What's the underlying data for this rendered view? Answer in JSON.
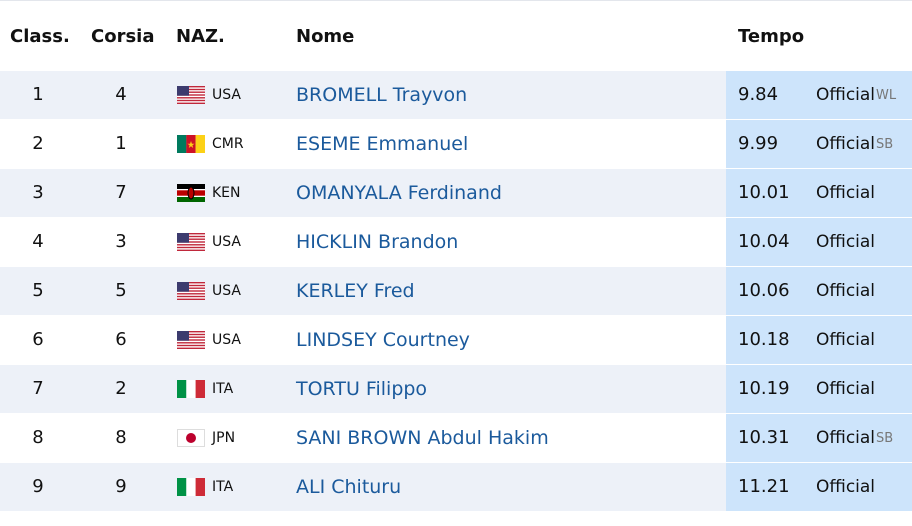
{
  "header": {
    "rank": "Class.",
    "lane": "Corsia",
    "nat": "NAZ.",
    "name": "Nome",
    "time": "Tempo"
  },
  "rows": [
    {
      "rank": "1",
      "lane": "4",
      "nat": "USA",
      "name": "BROMELL Trayvon",
      "time": "9.84",
      "status": "Official",
      "note": "WL"
    },
    {
      "rank": "2",
      "lane": "1",
      "nat": "CMR",
      "name": "ESEME Emmanuel",
      "time": "9.99",
      "status": "Official",
      "note": "SB"
    },
    {
      "rank": "3",
      "lane": "7",
      "nat": "KEN",
      "name": "OMANYALA Ferdinand",
      "time": "10.01",
      "status": "Official"
    },
    {
      "rank": "4",
      "lane": "3",
      "nat": "USA",
      "name": "HICKLIN Brandon",
      "time": "10.04",
      "status": "Official"
    },
    {
      "rank": "5",
      "lane": "5",
      "nat": "USA",
      "name": "KERLEY Fred",
      "time": "10.06",
      "status": "Official"
    },
    {
      "rank": "6",
      "lane": "6",
      "nat": "USA",
      "name": "LINDSEY Courtney",
      "time": "10.18",
      "status": "Official"
    },
    {
      "rank": "7",
      "lane": "2",
      "nat": "ITA",
      "name": "TORTU Filippo",
      "time": "10.19",
      "status": "Official"
    },
    {
      "rank": "8",
      "lane": "8",
      "nat": "JPN",
      "name": "SANI BROWN Abdul Hakim",
      "time": "10.31",
      "status": "Official",
      "note": "SB"
    },
    {
      "rank": "9",
      "lane": "9",
      "nat": "ITA",
      "name": "ALI Chituru",
      "time": "11.21",
      "status": "Official"
    }
  ]
}
